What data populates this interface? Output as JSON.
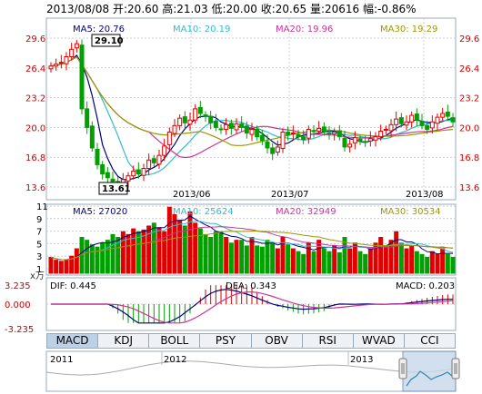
{
  "header": {
    "date": "2013/08/08",
    "open_label": "开:",
    "open": "20.60",
    "high_label": "高:",
    "high": "21.03",
    "low_label": "低:",
    "low": "20.00",
    "close_label": "收:",
    "close": "20.65",
    "volume_label": "量:",
    "volume": "20616",
    "change_label": "幅:",
    "change": "-0.86%"
  },
  "price_panel": {
    "ma5": "MA5: 20.76",
    "ma10": "MA10: 20.19",
    "ma20": "MA20: 19.96",
    "ma30": "MA30: 19.29",
    "y_ticks": [
      "29.6",
      "26.4",
      "23.2",
      "20.0",
      "16.8",
      "13.6"
    ],
    "x_ticks": [
      "2013/06",
      "2013/07",
      "2013/08"
    ],
    "high_marker": "29.10",
    "low_marker": "13.61"
  },
  "volume_panel": {
    "ma5": "MA5: 27020",
    "ma10": "MA10: 25624",
    "ma20": "MA20: 32949",
    "ma30": "MA30: 30534",
    "y_ticks": [
      "11",
      "9",
      "7",
      "5",
      "3",
      "1"
    ],
    "unit": "x万"
  },
  "macd_panel": {
    "dif": "DIF: 0.445",
    "dea": "DEA: 0.343",
    "macd": "MACD: 0.203",
    "y_ticks": [
      "3.235",
      "0.000",
      "-3.235"
    ]
  },
  "tabs": [
    "MACD",
    "KDJ",
    "BOLL",
    "PSY",
    "OBV",
    "RSI",
    "WVAD",
    "CCI"
  ],
  "active_tab": "MACD",
  "navigator": {
    "years": [
      "2011",
      "2012",
      "2013"
    ]
  },
  "colors": {
    "up": "#e00000",
    "down": "#00a000",
    "ma5": "#000080",
    "ma10": "#33bbcc",
    "ma20": "#cc3399",
    "ma30": "#999900",
    "grid": "#cccccc"
  }
}
